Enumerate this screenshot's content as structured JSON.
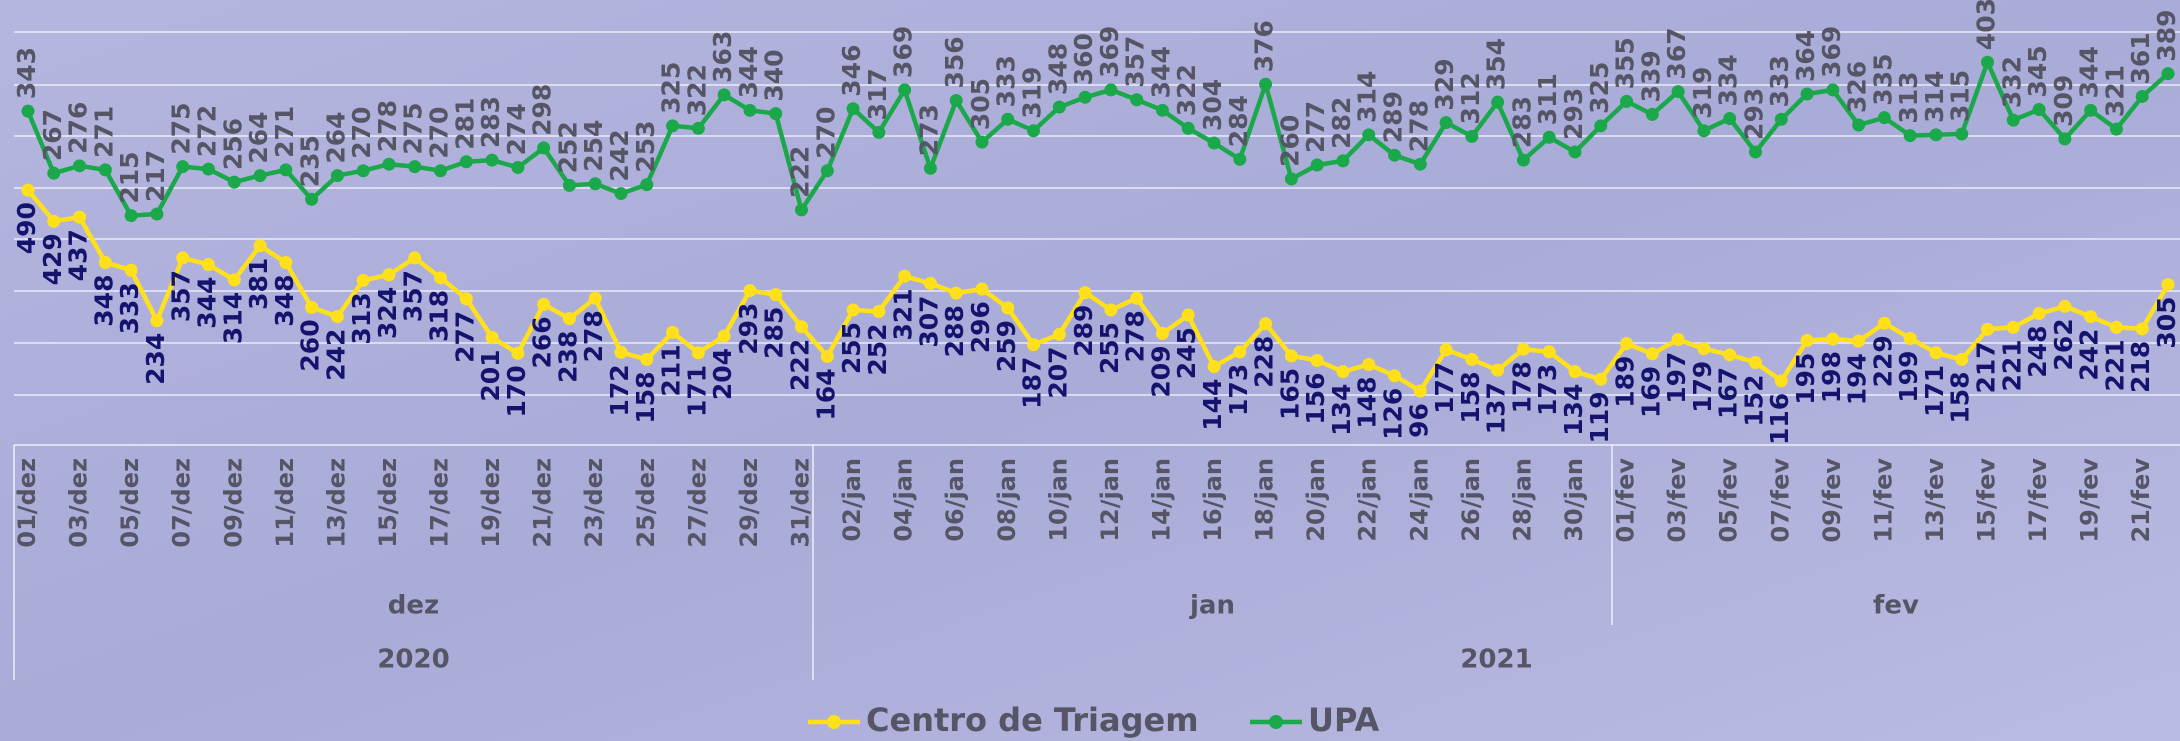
{
  "chart_data": {
    "type": "line",
    "categories": [
      "01/dez",
      null,
      "03/dez",
      null,
      "05/dez",
      null,
      "07/dez",
      null,
      "09/dez",
      null,
      "11/dez",
      null,
      "13/dez",
      null,
      "15/dez",
      null,
      "17/dez",
      null,
      "19/dez",
      null,
      "21/dez",
      null,
      "23/dez",
      null,
      "25/dez",
      null,
      "27/dez",
      null,
      "29/dez",
      null,
      "31/dez",
      null,
      "02/jan",
      null,
      "04/jan",
      null,
      "06/jan",
      null,
      "08/jan",
      null,
      "10/jan",
      null,
      "12/jan",
      null,
      "14/jan",
      null,
      "16/jan",
      null,
      "18/jan",
      null,
      "20/jan",
      null,
      "22/jan",
      null,
      "24/jan",
      null,
      "26/jan",
      null,
      "28/jan",
      null,
      "30/jan",
      null,
      "01/fev",
      null,
      "03/fev",
      null,
      "05/fev",
      null,
      "07/fev",
      null,
      "09/fev",
      null,
      "11/fev",
      null,
      "13/fev",
      null,
      "15/fev",
      null,
      "17/fev",
      null,
      "19/fev",
      null,
      "21/fev",
      null
    ],
    "months": [
      "dez",
      "jan",
      "fev"
    ],
    "years": [
      "2020",
      "2021"
    ],
    "series": [
      {
        "name": "Centro de Triagem",
        "color": "#ffe01b",
        "values": [
          490,
          429,
          437,
          348,
          333,
          234,
          357,
          344,
          314,
          381,
          348,
          260,
          242,
          313,
          324,
          357,
          318,
          277,
          201,
          170,
          266,
          238,
          278,
          172,
          158,
          211,
          171,
          204,
          293,
          285,
          222,
          164,
          255,
          252,
          321,
          307,
          288,
          296,
          259,
          187,
          207,
          289,
          255,
          278,
          209,
          245,
          144,
          173,
          228,
          165,
          156,
          134,
          148,
          126,
          96,
          177,
          158,
          137,
          178,
          173,
          134,
          119,
          189,
          169,
          197,
          179,
          167,
          152,
          116,
          195,
          198,
          194,
          229,
          199,
          171,
          158,
          217,
          221,
          248,
          262,
          242,
          221,
          218,
          305
        ]
      },
      {
        "name": "UPA",
        "color": "#1aa84b",
        "axis": "y2",
        "values": [
          343,
          267,
          276,
          271,
          215,
          217,
          275,
          272,
          256,
          264,
          271,
          235,
          264,
          270,
          278,
          275,
          270,
          281,
          283,
          274,
          298,
          252,
          254,
          242,
          253,
          325,
          322,
          363,
          344,
          340,
          222,
          270,
          346,
          317,
          369,
          273,
          356,
          305,
          333,
          319,
          348,
          360,
          369,
          357,
          344,
          322,
          304,
          284,
          376,
          260,
          277,
          282,
          314,
          289,
          278,
          329,
          312,
          354,
          283,
          311,
          293,
          325,
          355,
          339,
          367,
          319,
          334,
          293,
          333,
          364,
          369,
          326,
          335,
          313,
          314,
          315,
          403,
          332,
          345,
          309,
          344,
          321,
          361,
          389
        ]
      }
    ],
    "ylim": [
      0,
      800
    ],
    "y2lim": [
      -60,
      440
    ]
  }
}
